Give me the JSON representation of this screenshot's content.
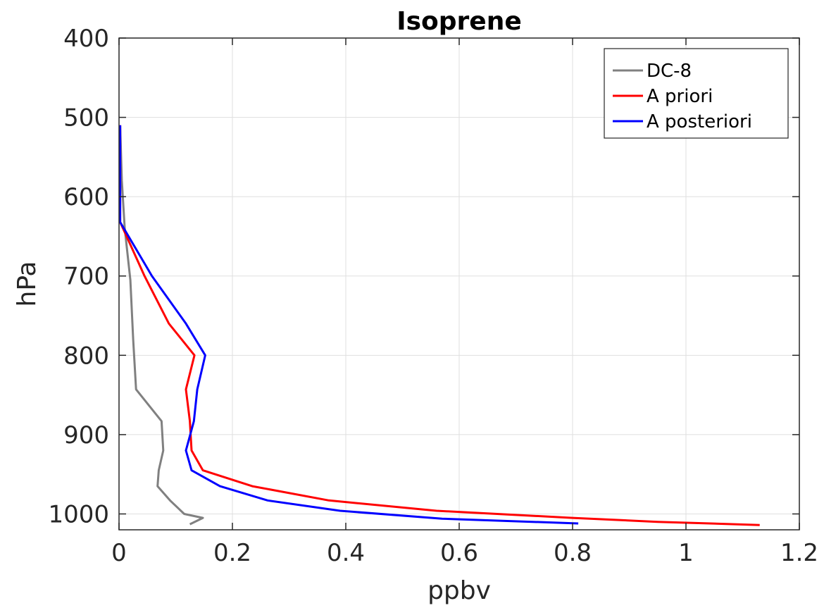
{
  "chart_data": {
    "type": "line",
    "title": "Isoprene",
    "xlabel": "ppbv",
    "ylabel": "hPa",
    "xlim": [
      0,
      1.2
    ],
    "ylim": [
      400,
      1020
    ],
    "y_reversed": true,
    "xticks": [
      "0",
      "0.2",
      "0.4",
      "0.6",
      "0.8",
      "1",
      "1.2"
    ],
    "yticks": [
      "400",
      "500",
      "600",
      "700",
      "800",
      "900",
      "1000"
    ],
    "grid": true,
    "legend_position": "top-right",
    "series": [
      {
        "name": "DC-8",
        "color": "#808080",
        "points": [
          [
            0.002,
            510
          ],
          [
            0.005,
            580
          ],
          [
            0.01,
            640
          ],
          [
            0.02,
            705
          ],
          [
            0.025,
            780
          ],
          [
            0.03,
            843
          ],
          [
            0.075,
            883
          ],
          [
            0.078,
            920
          ],
          [
            0.07,
            945
          ],
          [
            0.068,
            965
          ],
          [
            0.09,
            983
          ],
          [
            0.115,
            1000
          ],
          [
            0.148,
            1005
          ],
          [
            0.125,
            1013
          ]
        ]
      },
      {
        "name": "A priori",
        "color": "#ff0000",
        "points": [
          [
            0.002,
            510
          ],
          [
            0.002,
            632
          ],
          [
            0.045,
            700
          ],
          [
            0.088,
            760
          ],
          [
            0.133,
            800
          ],
          [
            0.118,
            843
          ],
          [
            0.125,
            883
          ],
          [
            0.128,
            920
          ],
          [
            0.148,
            945
          ],
          [
            0.235,
            965
          ],
          [
            0.37,
            983
          ],
          [
            0.56,
            996
          ],
          [
            0.8,
            1005
          ],
          [
            0.95,
            1010
          ],
          [
            1.13,
            1014
          ]
        ]
      },
      {
        "name": "A posteriori",
        "color": "#0000ff",
        "points": [
          [
            0.002,
            510
          ],
          [
            0.002,
            632
          ],
          [
            0.058,
            700
          ],
          [
            0.118,
            760
          ],
          [
            0.152,
            800
          ],
          [
            0.138,
            843
          ],
          [
            0.132,
            883
          ],
          [
            0.118,
            920
          ],
          [
            0.128,
            945
          ],
          [
            0.178,
            965
          ],
          [
            0.262,
            983
          ],
          [
            0.39,
            996
          ],
          [
            0.57,
            1006
          ],
          [
            0.81,
            1012
          ]
        ]
      }
    ]
  }
}
